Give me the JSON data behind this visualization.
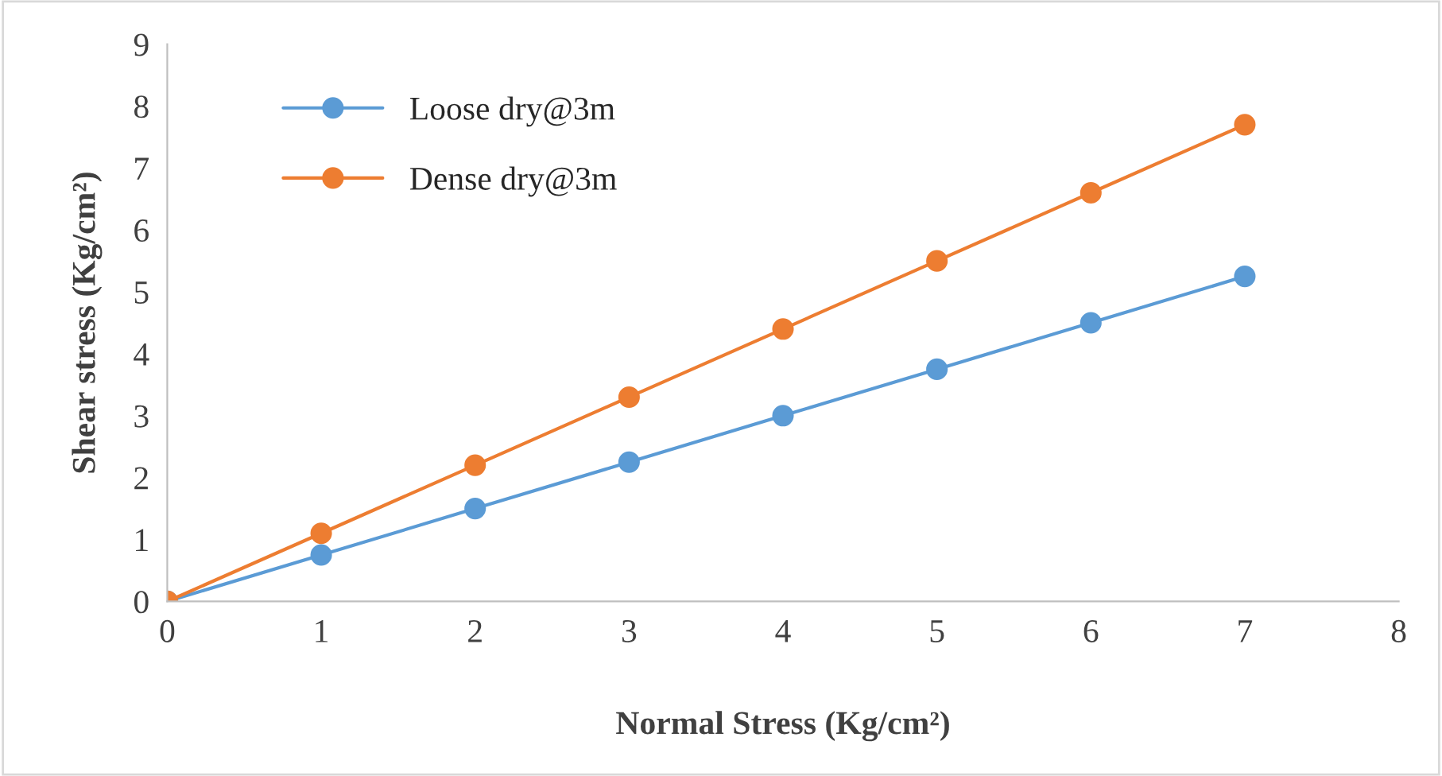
{
  "chart_data": {
    "type": "line",
    "xlabel": "Normal Stress (Kg/cm²)",
    "ylabel": "Shear stress (Kg/cm²)",
    "xlim": [
      0,
      8
    ],
    "xticks": [
      0,
      1,
      2,
      3,
      4,
      5,
      6,
      7,
      8
    ],
    "ylim": [
      0,
      9
    ],
    "yticks": [
      0,
      1,
      2,
      3,
      4,
      5,
      6,
      7,
      8,
      9
    ],
    "x": [
      0,
      1,
      2,
      3,
      4,
      5,
      6,
      7
    ],
    "series": [
      {
        "name": "Loose dry@3m",
        "color": "#5b9bd5",
        "values": [
          0,
          0.75,
          1.5,
          2.25,
          3.0,
          3.75,
          4.5,
          5.25
        ]
      },
      {
        "name": "Dense dry@3m",
        "color": "#ed7d31",
        "values": [
          0,
          1.1,
          2.2,
          3.3,
          4.4,
          5.5,
          6.6,
          7.7
        ]
      }
    ],
    "grid": false,
    "legend": "top left",
    "marker": "circle",
    "line_style": "solid"
  }
}
